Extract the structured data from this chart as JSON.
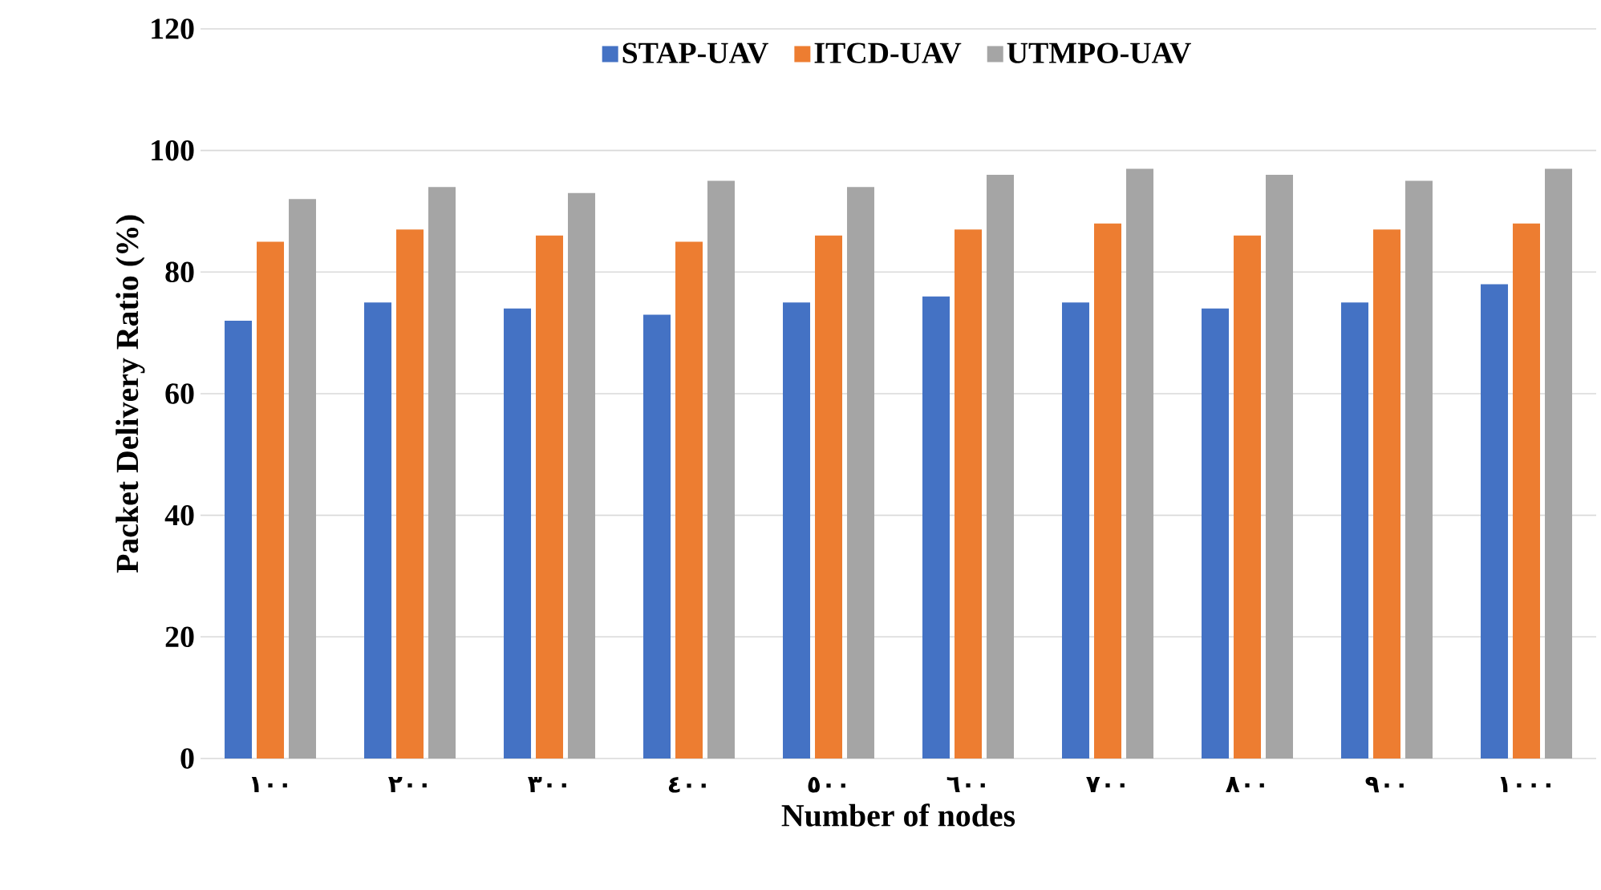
{
  "chart_data": {
    "type": "bar",
    "xlabel": "Number of nodes",
    "ylabel": "Packet Delivery Ratio (%)",
    "categories": [
      "١٠٠",
      "٢٠٠",
      "٣٠٠",
      "٤٠٠",
      "٥٠٠",
      "٦٠٠",
      "٧٠٠",
      "٨٠٠",
      "٩٠٠",
      "١٠٠٠"
    ],
    "series": [
      {
        "name": "STAP-UAV",
        "color": "#4472c4",
        "values": [
          72,
          75,
          74,
          73,
          75,
          76,
          75,
          74,
          75,
          78
        ]
      },
      {
        "name": "ITCD-UAV",
        "color": "#ed7d31",
        "values": [
          85,
          87,
          86,
          85,
          86,
          87,
          88,
          86,
          87,
          88
        ]
      },
      {
        "name": "UTMPO-UAV",
        "color": "#a5a5a5",
        "values": [
          92,
          94,
          93,
          95,
          94,
          96,
          97,
          96,
          95,
          97
        ]
      }
    ],
    "ylim": [
      0,
      120
    ],
    "yticks": [
      0,
      20,
      40,
      60,
      80,
      100,
      120
    ],
    "grid": "y",
    "legend": "top"
  }
}
